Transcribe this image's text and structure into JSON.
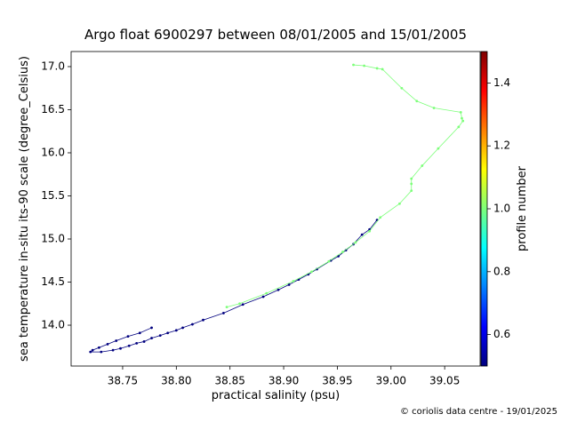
{
  "chart_data": {
    "type": "line",
    "title": "Argo float 6900297 between 08/01/2005 and 15/01/2005",
    "xlabel": "practical salinity (psu)",
    "ylabel": "sea temperature in-situ its-90 scale (degree_Celsius)",
    "credit": "© coriolis data centre - 19/01/2025",
    "xlim": [
      38.702,
      39.083
    ],
    "ylim": [
      13.526,
      17.175
    ],
    "xticks": [
      38.75,
      {
        "value": 38.8,
        "label": "38.80"
      },
      38.85,
      {
        "value": 38.9,
        "label": "38.90"
      },
      38.95,
      {
        "value": 39,
        "label": "39.00"
      },
      39.05
    ],
    "yticks": [
      {
        "value": 14,
        "label": "14.0"
      },
      14.5,
      {
        "value": 15,
        "label": "15.0"
      },
      15.5,
      {
        "value": 16,
        "label": "16.0"
      },
      16.5,
      {
        "value": 17,
        "label": "17.0"
      }
    ],
    "colorbar": {
      "label": "profile number",
      "colormap": "jet",
      "lim": [
        0.5,
        1.5
      ],
      "ticks": [
        0.6,
        0.8,
        {
          "value": 1,
          "label": "1.0"
        },
        1.2,
        1.4
      ]
    },
    "series": [
      {
        "color": "#00007f",
        "x": [
          38.987,
          38.98,
          38.973,
          38.965,
          38.958,
          38.951,
          38.944,
          38.931,
          38.923,
          38.914,
          38.905,
          38.895,
          38.881,
          38.862,
          38.844,
          38.825,
          38.815,
          38.806,
          38.8,
          38.792,
          38.785,
          38.777,
          38.77,
          38.763,
          38.756,
          38.748,
          38.741,
          38.73,
          38.72,
          38.722,
          38.728,
          38.736,
          38.744,
          38.755,
          38.766,
          38.777
        ],
        "values": [
          15.22,
          15.11,
          15.05,
          14.94,
          14.87,
          14.8,
          14.75,
          14.65,
          14.59,
          14.53,
          14.47,
          14.41,
          14.33,
          14.24,
          14.14,
          14.06,
          14.01,
          13.97,
          13.94,
          13.91,
          13.88,
          13.85,
          13.81,
          13.79,
          13.76,
          13.73,
          13.71,
          13.69,
          13.69,
          13.71,
          13.74,
          13.78,
          13.82,
          13.87,
          13.91,
          13.97
        ]
      },
      {
        "color": "#7dff7a",
        "x": [
          38.965,
          38.975,
          38.987,
          38.992,
          39.01,
          39.024,
          39.04,
          39.065,
          39.066,
          39.067,
          39.063,
          39.044,
          39.029,
          39.019,
          39.019,
          39.019,
          39.008,
          38.99,
          38.98,
          38.967,
          38.955,
          38.942,
          38.926,
          38.909,
          38.884,
          38.859,
          38.847
        ],
        "values": [
          17.02,
          17.01,
          16.98,
          16.97,
          16.75,
          16.6,
          16.52,
          16.47,
          16.4,
          16.37,
          16.3,
          16.05,
          15.85,
          15.7,
          15.64,
          15.56,
          15.41,
          15.25,
          15.09,
          14.96,
          14.85,
          14.74,
          14.62,
          14.51,
          14.37,
          14.25,
          14.21
        ]
      }
    ]
  }
}
